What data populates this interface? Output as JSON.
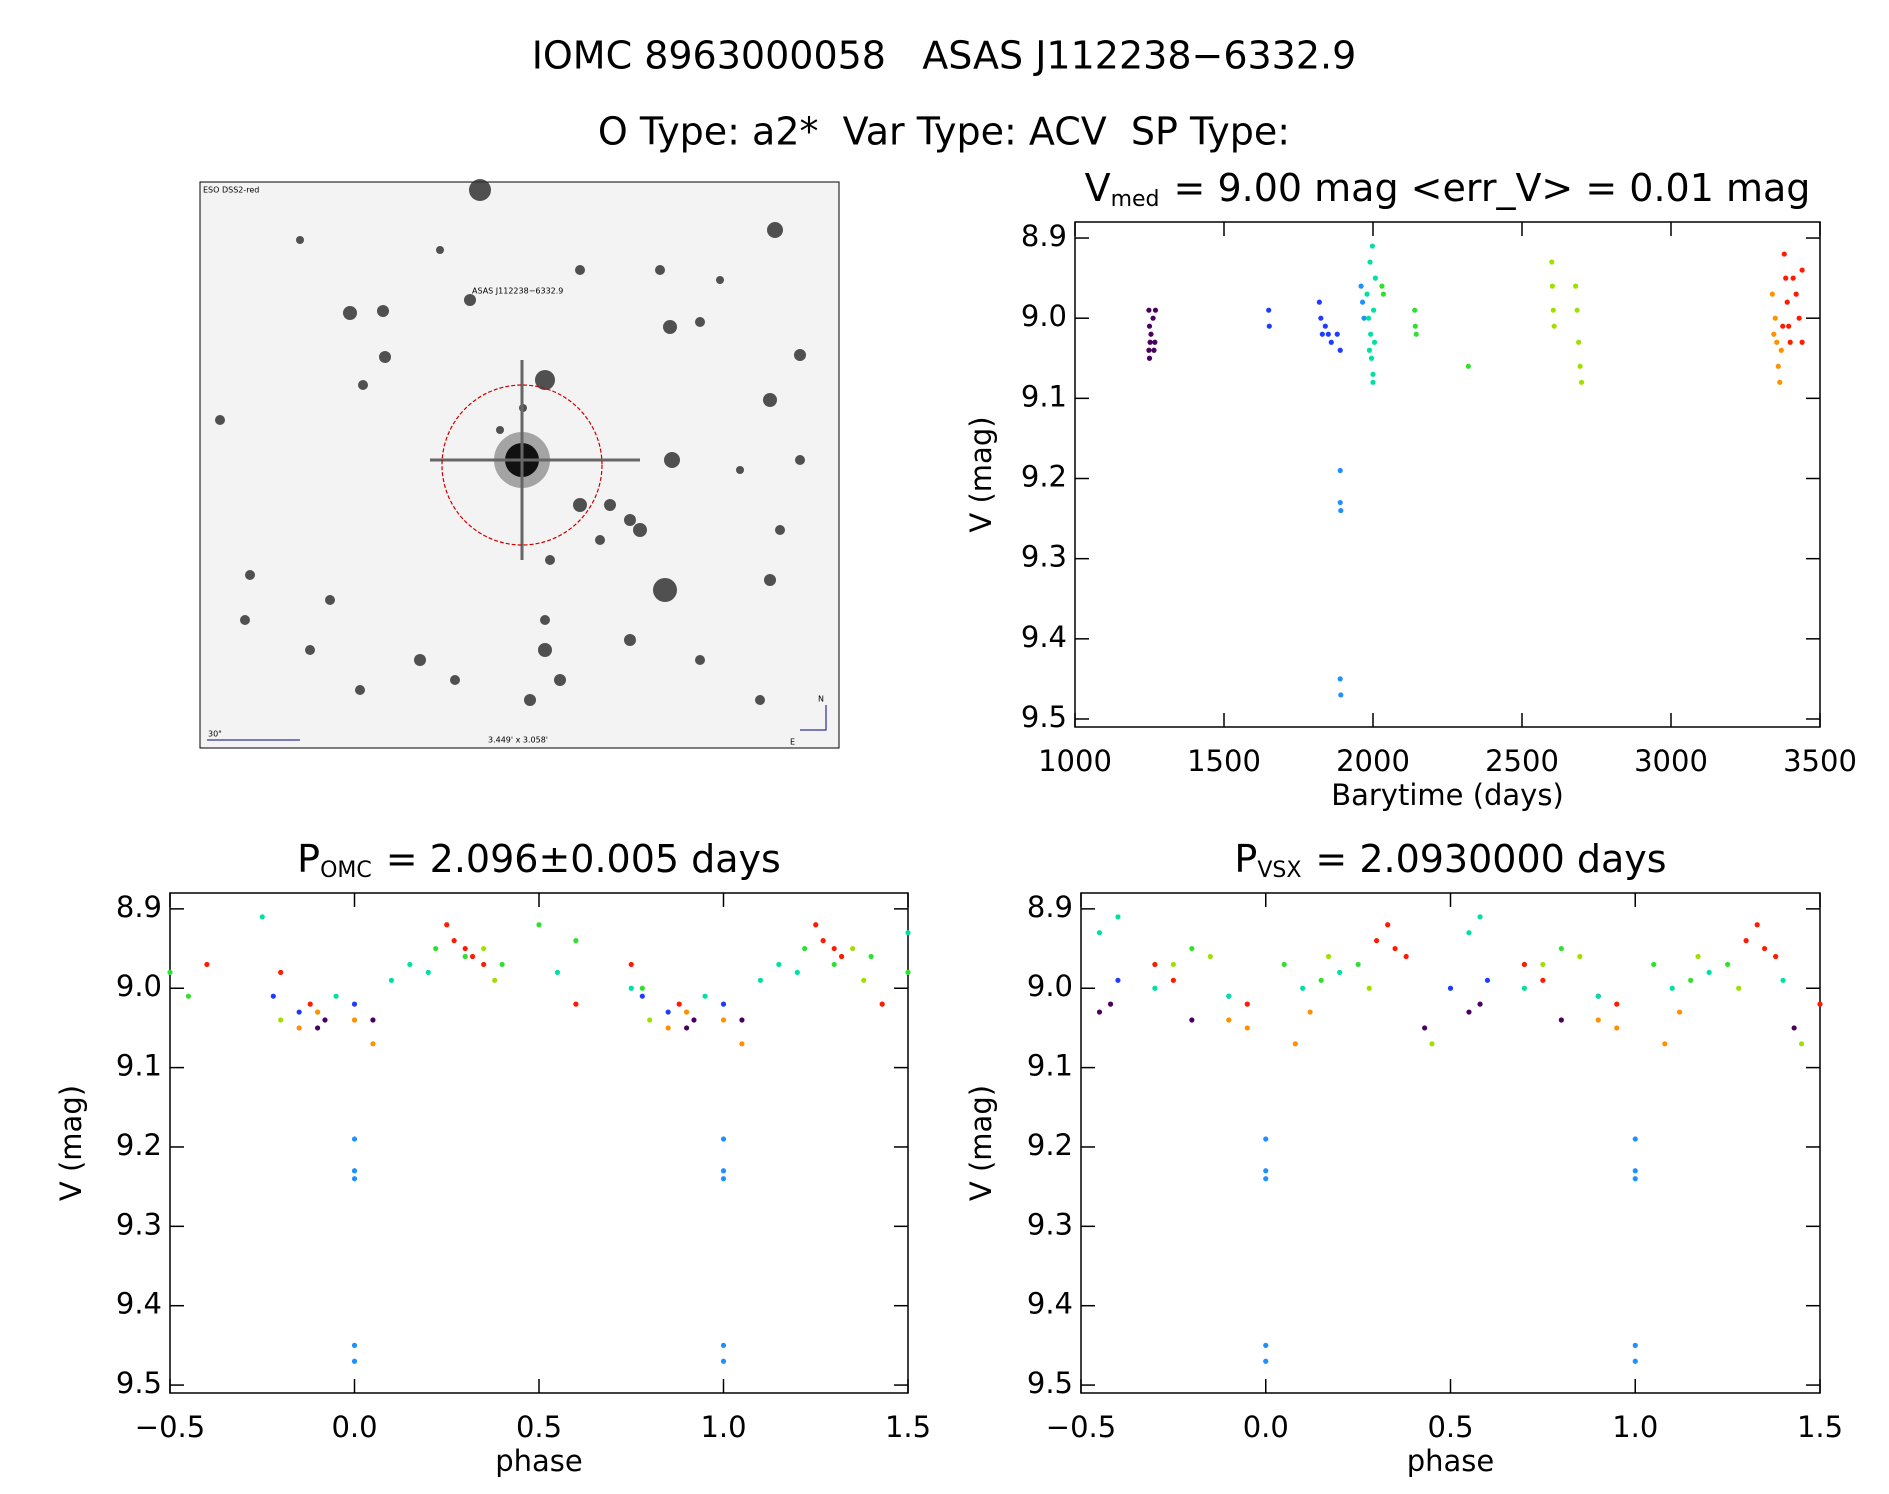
{
  "header": {
    "title": "IOMC 8963000058   ASAS J112238−6332.9",
    "subtitle": "O Type: a2*  Var Type: ACV  SP Type:"
  },
  "image": {
    "survey": "ESO DSS2-red",
    "target": "ASAS J112238−6332.9",
    "scale": "30\"",
    "field": "3.449' x 3.058'",
    "north": "N",
    "east": "E"
  },
  "chart_data": [
    {
      "type": "scatter",
      "title": {
        "symbol": "V",
        "subscript": "med",
        "text": "= 9.00 mag <err_V> = 0.01 mag"
      },
      "x_label": "Barytime (days)",
      "y_label": "V (mag)",
      "xlim": [
        1000,
        3500
      ],
      "xticks": [
        1000,
        1500,
        2000,
        2500,
        3000,
        3500
      ],
      "ylim": [
        9.51,
        8.88
      ],
      "yticks": [
        8.9,
        {
          "value": 9,
          "label": "9.0"
        },
        9.1,
        9.2,
        9.3,
        9.4,
        9.5
      ],
      "series": [
        {
          "color": "#4b0060",
          "x": [
            1248,
            1250,
            1252,
            1250,
            1255,
            1262,
            1265,
            1270,
            1268,
            1248
          ],
          "values": [
            8.99,
            9.01,
            9.03,
            9.05,
            9.02,
            9.0,
            9.04,
            8.99,
            9.03,
            9.04
          ]
        },
        {
          "color": "#1e3cff",
          "x": [
            1650,
            1652,
            1820,
            1825,
            1830,
            1840,
            1850,
            1860,
            1880,
            1890
          ],
          "values": [
            8.99,
            9.01,
            8.98,
            9.0,
            9.02,
            9.01,
            9.02,
            9.03,
            9.02,
            9.04
          ]
        },
        {
          "color": "#1e90ff",
          "x": [
            1890,
            1890,
            1892,
            1890,
            1892,
            1960,
            1965,
            1970
          ],
          "values": [
            9.19,
            9.23,
            9.24,
            9.45,
            9.47,
            8.96,
            8.98,
            9.0
          ]
        },
        {
          "color": "#00e0a0",
          "x": [
            1980,
            1985,
            1990,
            1992,
            1995,
            1998,
            2000,
            2002,
            2005,
            2008,
            1988,
            2000
          ],
          "values": [
            8.97,
            9.0,
            8.93,
            9.02,
            9.05,
            8.91,
            9.07,
            8.99,
            9.03,
            8.95,
            9.04,
            9.08
          ]
        },
        {
          "color": "#30e030",
          "x": [
            2030,
            2035,
            2140,
            2142,
            2145,
            2320
          ],
          "values": [
            8.96,
            8.97,
            8.99,
            9.01,
            9.02,
            9.06
          ]
        },
        {
          "color": "#a0e000",
          "x": [
            2600,
            2602,
            2605,
            2608,
            2680,
            2685,
            2690,
            2695,
            2700
          ],
          "values": [
            8.93,
            8.96,
            8.99,
            9.01,
            8.96,
            8.99,
            9.03,
            9.06,
            9.08
          ]
        },
        {
          "color": "#ff9000",
          "x": [
            3340,
            3350,
            3355,
            3360,
            3365,
            3370,
            3345
          ],
          "values": [
            8.97,
            9.0,
            9.03,
            9.06,
            9.08,
            9.04,
            9.02
          ]
        },
        {
          "color": "#ff1a00",
          "x": [
            3380,
            3385,
            3390,
            3395,
            3400,
            3410,
            3420,
            3430,
            3440,
            3440,
            3375
          ],
          "values": [
            8.92,
            8.95,
            8.98,
            9.01,
            9.03,
            8.95,
            8.97,
            9.0,
            9.03,
            8.94,
            9.01
          ]
        }
      ]
    },
    {
      "type": "scatter",
      "title": {
        "symbol": "P",
        "subscript": "OMC",
        "text": "= 2.096±0.005 days"
      },
      "x_label": "phase",
      "y_label": "V (mag)",
      "xlim": [
        -0.5,
        1.5
      ],
      "xticks": [
        {
          "value": -0.5,
          "label": "−0.5"
        },
        {
          "value": 0,
          "label": "0.0"
        },
        0.5,
        {
          "value": 1,
          "label": "1.0"
        },
        1.5
      ],
      "ylim": [
        9.51,
        8.88
      ],
      "yticks": [
        8.9,
        {
          "value": 9,
          "label": "9.0"
        },
        9.1,
        9.2,
        9.3,
        9.4,
        9.5
      ],
      "series": [
        {
          "color": "#4b0060",
          "x": [
            -0.1,
            -0.08,
            0.05,
            0.9,
            0.92,
            1.05
          ],
          "values": [
            9.05,
            9.04,
            9.04,
            9.05,
            9.04,
            9.04
          ]
        },
        {
          "color": "#1e3cff",
          "x": [
            -0.22,
            -0.15,
            0.0,
            0.78,
            0.85,
            1.0
          ],
          "values": [
            9.01,
            9.03,
            9.02,
            9.01,
            9.03,
            9.02
          ]
        },
        {
          "color": "#1e90ff",
          "x": [
            0,
            0,
            0,
            0,
            0,
            1,
            1,
            1,
            1,
            1
          ],
          "values": [
            9.19,
            9.23,
            9.24,
            9.45,
            9.47,
            9.19,
            9.23,
            9.24,
            9.45,
            9.47
          ]
        },
        {
          "color": "#00e0a0",
          "x": [
            -0.25,
            -0.05,
            0.1,
            0.15,
            0.2,
            0.55,
            0.75,
            0.95,
            1.1,
            1.15,
            1.2,
            1.5
          ],
          "values": [
            8.91,
            9.01,
            8.99,
            8.97,
            8.98,
            8.98,
            9.0,
            9.01,
            8.99,
            8.97,
            8.98,
            8.93
          ]
        },
        {
          "color": "#30e030",
          "x": [
            -0.5,
            -0.45,
            0.22,
            0.3,
            0.4,
            0.5,
            0.6,
            0.78,
            1.22,
            1.3,
            1.4,
            1.5
          ],
          "values": [
            8.98,
            9.01,
            8.95,
            8.96,
            8.97,
            8.92,
            8.94,
            9.0,
            8.95,
            8.97,
            8.96,
            8.98
          ]
        },
        {
          "color": "#a0e000",
          "x": [
            -0.2,
            -0.1,
            0.35,
            0.38,
            0.8,
            0.9,
            1.35,
            1.38
          ],
          "values": [
            9.04,
            9.03,
            8.95,
            8.99,
            9.04,
            9.03,
            8.95,
            8.99
          ]
        },
        {
          "color": "#ff9000",
          "x": [
            -0.15,
            -0.1,
            0.0,
            0.05,
            0.85,
            0.9,
            1.0,
            1.05
          ],
          "values": [
            9.05,
            9.03,
            9.04,
            9.07,
            9.05,
            9.03,
            9.04,
            9.07
          ]
        },
        {
          "color": "#ff1a00",
          "x": [
            -0.4,
            -0.2,
            -0.12,
            0.25,
            0.27,
            0.3,
            0.32,
            0.35,
            0.6,
            0.75,
            0.88,
            1.25,
            1.27,
            1.3,
            1.32,
            1.43
          ],
          "values": [
            8.97,
            8.98,
            9.02,
            8.92,
            8.94,
            8.95,
            8.96,
            8.97,
            9.02,
            8.97,
            9.02,
            8.92,
            8.94,
            8.95,
            8.96,
            9.02
          ]
        }
      ]
    },
    {
      "type": "scatter",
      "title": {
        "symbol": "P",
        "subscript": "VSX",
        "text": "= 2.0930000 days"
      },
      "x_label": "phase",
      "y_label": "V (mag)",
      "xlim": [
        -0.5,
        1.5
      ],
      "xticks": [
        {
          "value": -0.5,
          "label": "−0.5"
        },
        {
          "value": 0,
          "label": "0.0"
        },
        0.5,
        {
          "value": 1,
          "label": "1.0"
        },
        1.5
      ],
      "ylim": [
        9.51,
        8.88
      ],
      "yticks": [
        8.9,
        {
          "value": 9,
          "label": "9.0"
        },
        9.1,
        9.2,
        9.3,
        9.4,
        9.5
      ],
      "series": [
        {
          "color": "#4b0060",
          "x": [
            -0.45,
            -0.42,
            -0.2,
            0.43,
            0.55,
            0.58,
            0.8,
            1.43
          ],
          "values": [
            9.03,
            9.02,
            9.04,
            9.05,
            9.03,
            9.02,
            9.04,
            9.05
          ]
        },
        {
          "color": "#1e3cff",
          "x": [
            -0.4,
            -0.1,
            0.5,
            0.6,
            0.9
          ],
          "values": [
            8.99,
            9.01,
            9.0,
            8.99,
            9.01
          ]
        },
        {
          "color": "#1e90ff",
          "x": [
            0,
            0,
            0,
            0,
            0,
            1,
            1,
            1,
            1,
            1
          ],
          "values": [
            9.19,
            9.23,
            9.24,
            9.45,
            9.47,
            9.19,
            9.23,
            9.24,
            9.45,
            9.47
          ]
        },
        {
          "color": "#00e0a0",
          "x": [
            -0.45,
            -0.4,
            -0.3,
            -0.1,
            0.1,
            0.2,
            0.55,
            0.58,
            0.7,
            0.9,
            1.1,
            1.2,
            1.4
          ],
          "values": [
            8.93,
            8.91,
            9.0,
            9.01,
            9.0,
            8.98,
            8.93,
            8.91,
            9.0,
            9.01,
            9.0,
            8.98,
            8.99
          ]
        },
        {
          "color": "#30e030",
          "x": [
            -0.3,
            -0.2,
            0.05,
            0.15,
            0.25,
            0.7,
            0.8,
            1.05,
            1.15,
            1.25
          ],
          "values": [
            8.97,
            8.95,
            8.97,
            8.99,
            8.97,
            8.97,
            8.95,
            8.97,
            8.99,
            8.97
          ]
        },
        {
          "color": "#a0e000",
          "x": [
            -0.25,
            -0.15,
            0.17,
            0.28,
            0.45,
            0.75,
            0.85,
            1.17,
            1.28,
            1.45
          ],
          "values": [
            8.97,
            8.96,
            8.96,
            9.0,
            9.07,
            8.97,
            8.96,
            8.96,
            9.0,
            9.07
          ]
        },
        {
          "color": "#ff9000",
          "x": [
            -0.1,
            -0.05,
            0.08,
            0.12,
            0.9,
            0.95,
            1.08,
            1.12
          ],
          "values": [
            9.04,
            9.05,
            9.07,
            9.03,
            9.04,
            9.05,
            9.07,
            9.03
          ]
        },
        {
          "color": "#ff1a00",
          "x": [
            -0.3,
            -0.25,
            -0.05,
            0.3,
            0.33,
            0.35,
            0.38,
            0.7,
            0.75,
            0.95,
            1.3,
            1.33,
            1.35,
            1.38,
            1.5
          ],
          "values": [
            8.97,
            8.99,
            9.02,
            8.94,
            8.92,
            8.95,
            8.96,
            8.97,
            8.99,
            9.02,
            8.94,
            8.92,
            8.95,
            8.96,
            9.02
          ]
        }
      ]
    }
  ]
}
